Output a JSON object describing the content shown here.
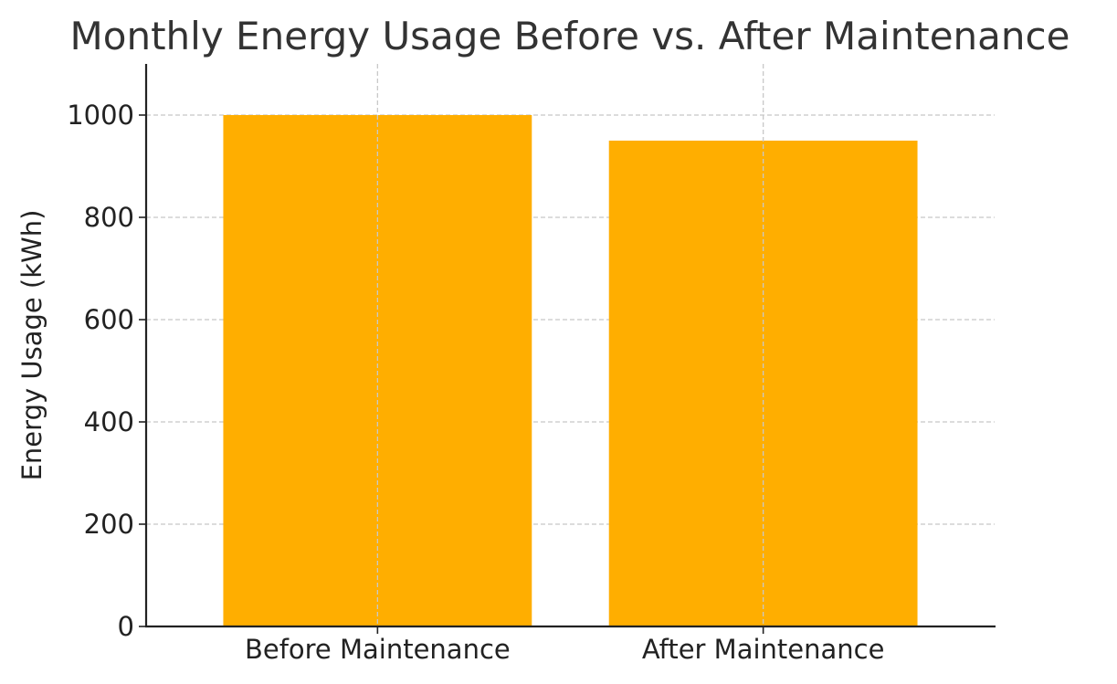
{
  "chart_data": {
    "type": "bar",
    "title": "Monthly Energy Usage Before vs. After Maintenance",
    "xlabel": "",
    "ylabel": "Energy Usage (kWh)",
    "categories": [
      "Before Maintenance",
      "After Maintenance"
    ],
    "values": [
      1000,
      950
    ],
    "ylim": [
      0,
      1100
    ],
    "yticks": [
      0,
      200,
      400,
      600,
      800,
      1000
    ],
    "grid": true,
    "bar_color": "#FFAE00"
  }
}
